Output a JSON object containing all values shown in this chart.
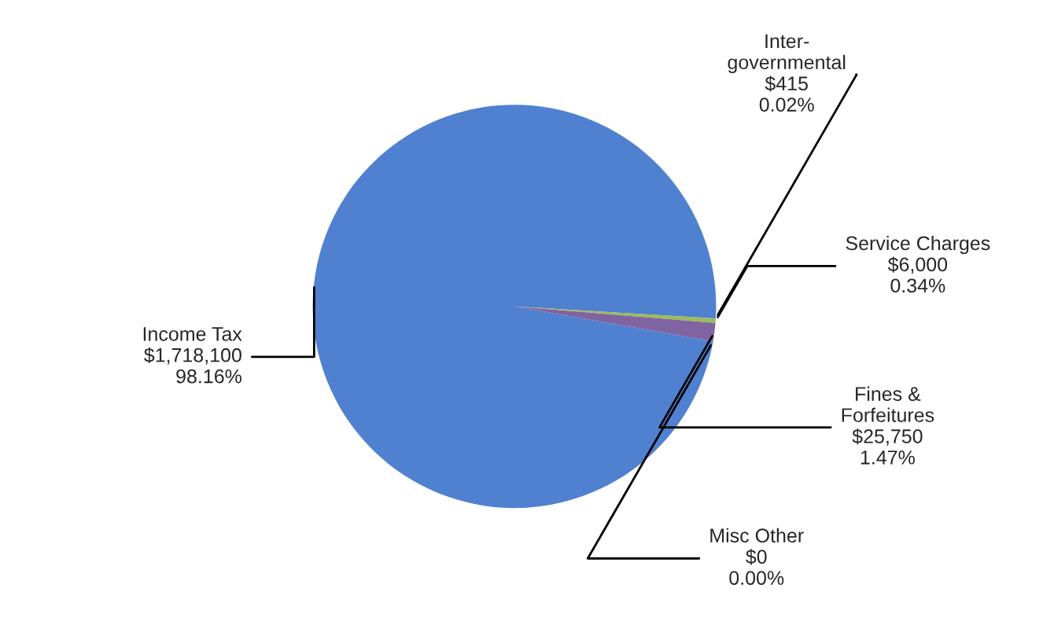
{
  "chart_data": {
    "type": "pie",
    "categories": [
      "Income Tax",
      "Inter-\ngovernmental",
      "Service Charges",
      "Fines &\nForfeitures",
      "Misc Other"
    ],
    "values": [
      1718100,
      415,
      6000,
      25750,
      0
    ],
    "value_labels": [
      "$1,718,100\n98.16%",
      "$415\n0.02%",
      "$6,000\n0.34%",
      "$25,750\n1.47%",
      "$0\n0.00%"
    ],
    "colors": [
      "#4f81d0",
      "#c0504d",
      "#9bbb59",
      "#8064a2",
      "#4bacc6"
    ]
  }
}
